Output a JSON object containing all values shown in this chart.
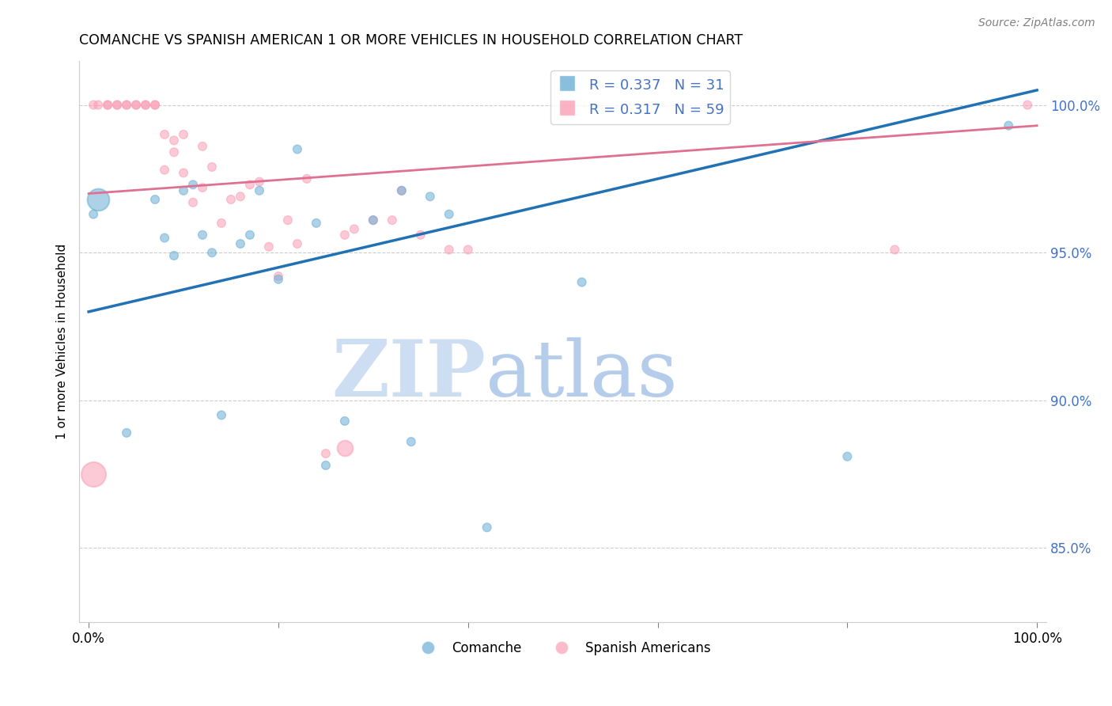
{
  "title": "COMANCHE VS SPANISH AMERICAN 1 OR MORE VEHICLES IN HOUSEHOLD CORRELATION CHART",
  "source": "Source: ZipAtlas.com",
  "ylabel": "1 or more Vehicles in Household",
  "ytick_labels": [
    "85.0%",
    "90.0%",
    "95.0%",
    "100.0%"
  ],
  "ytick_values": [
    0.85,
    0.9,
    0.95,
    1.0
  ],
  "xlim": [
    -0.01,
    1.01
  ],
  "ylim": [
    0.825,
    1.015
  ],
  "legend_blue_label": "R = 0.337   N = 31",
  "legend_pink_label": "R = 0.317   N = 59",
  "legend_comanche": "Comanche",
  "legend_spanish": "Spanish Americans",
  "blue_color": "#6baed6",
  "pink_color": "#fa9fb5",
  "blue_line_color": "#2171b5",
  "pink_line_color": "#e07090",
  "watermark_zip": "ZIP",
  "watermark_atlas": "atlas",
  "blue_scatter_x": [
    0.005,
    0.04,
    0.07,
    0.08,
    0.09,
    0.1,
    0.11,
    0.12,
    0.13,
    0.14,
    0.16,
    0.17,
    0.18,
    0.2,
    0.22,
    0.24,
    0.25,
    0.27,
    0.3,
    0.33,
    0.34,
    0.36,
    0.38,
    0.42,
    0.52,
    0.8,
    0.97
  ],
  "blue_scatter_y": [
    0.963,
    0.889,
    0.968,
    0.955,
    0.949,
    0.971,
    0.973,
    0.956,
    0.95,
    0.895,
    0.953,
    0.956,
    0.971,
    0.941,
    0.985,
    0.96,
    0.878,
    0.893,
    0.961,
    0.971,
    0.886,
    0.969,
    0.963,
    0.857,
    0.94,
    0.881,
    0.993
  ],
  "blue_scatter_size": [
    60,
    60,
    60,
    60,
    60,
    60,
    60,
    60,
    60,
    60,
    60,
    60,
    60,
    60,
    60,
    60,
    60,
    60,
    60,
    60,
    60,
    60,
    60,
    60,
    60,
    60,
    60
  ],
  "blue_large_x": [
    0.01
  ],
  "blue_large_y": [
    0.968
  ],
  "blue_large_size": [
    400
  ],
  "pink_scatter_x": [
    0.005,
    0.01,
    0.02,
    0.02,
    0.03,
    0.03,
    0.04,
    0.04,
    0.05,
    0.05,
    0.06,
    0.06,
    0.07,
    0.07,
    0.08,
    0.08,
    0.09,
    0.09,
    0.1,
    0.1,
    0.11,
    0.12,
    0.12,
    0.13,
    0.14,
    0.15,
    0.16,
    0.17,
    0.18,
    0.19,
    0.2,
    0.21,
    0.22,
    0.23,
    0.25,
    0.27,
    0.28,
    0.3,
    0.32,
    0.33,
    0.35,
    0.38,
    0.4,
    0.85,
    0.99
  ],
  "pink_scatter_y": [
    1.0,
    1.0,
    1.0,
    1.0,
    1.0,
    1.0,
    1.0,
    1.0,
    1.0,
    1.0,
    1.0,
    1.0,
    1.0,
    1.0,
    0.978,
    0.99,
    0.988,
    0.984,
    0.977,
    0.99,
    0.967,
    0.986,
    0.972,
    0.979,
    0.96,
    0.968,
    0.969,
    0.973,
    0.974,
    0.952,
    0.942,
    0.961,
    0.953,
    0.975,
    0.882,
    0.956,
    0.958,
    0.961,
    0.961,
    0.971,
    0.956,
    0.951,
    0.951,
    0.951,
    1.0
  ],
  "pink_scatter_size": [
    60,
    60,
    60,
    60,
    60,
    60,
    60,
    60,
    60,
    60,
    60,
    60,
    60,
    60,
    60,
    60,
    60,
    60,
    60,
    60,
    60,
    60,
    60,
    60,
    60,
    60,
    60,
    60,
    60,
    60,
    60,
    60,
    60,
    60,
    60,
    60,
    60,
    60,
    60,
    60,
    60,
    60,
    60,
    60,
    60
  ],
  "pink_large_x": [
    0.005
  ],
  "pink_large_y": [
    0.875
  ],
  "pink_large_size": [
    500
  ],
  "pink_large2_x": [
    0.27
  ],
  "pink_large2_y": [
    0.884
  ],
  "pink_large2_size": [
    200
  ],
  "blue_line_x0": 0.0,
  "blue_line_x1": 1.0,
  "blue_line_y0": 0.93,
  "blue_line_y1": 1.005,
  "pink_line_x0": 0.0,
  "pink_line_x1": 1.0,
  "pink_line_y0": 0.97,
  "pink_line_y1": 0.993
}
